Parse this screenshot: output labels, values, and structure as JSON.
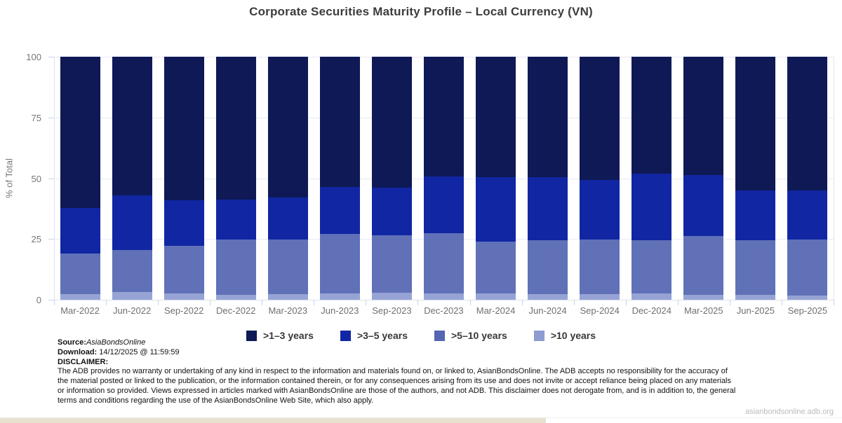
{
  "title": "Corporate Securities Maturity Profile – Local Currency (VN)",
  "chart_data": {
    "type": "bar",
    "stacked": true,
    "title": "Corporate Securities Maturity Profile – Local Currency (VN)",
    "ylabel": "% of Total",
    "xlabel": "",
    "ylim": [
      0,
      100
    ],
    "yticks": [
      0,
      25,
      50,
      75,
      100
    ],
    "grid": true,
    "legend_position": "bottom-center",
    "categories": [
      "Mar-2022",
      "Jun-2022",
      "Sep-2022",
      "Dec-2022",
      "Mar-2023",
      "Jun-2023",
      "Sep-2023",
      "Dec-2023",
      "Mar-2024",
      "Jun-2024",
      "Sep-2024",
      "Dec-2024",
      "Mar-2025",
      "Jun-2025",
      "Sep-2025"
    ],
    "series": [
      {
        "name": ">1–3 years",
        "color": "#0e1956",
        "stack_order": "top",
        "values": [
          62.2,
          57.2,
          59.1,
          58.8,
          58.0,
          53.7,
          53.8,
          49.2,
          49.5,
          49.5,
          50.6,
          48.2,
          48.7,
          54.9,
          54.9
        ]
      },
      {
        "name": ">3–5 years",
        "color": "#1126a3",
        "stack_order": "second",
        "values": [
          18.7,
          22.4,
          18.7,
          16.3,
          17.1,
          19.3,
          19.6,
          23.5,
          26.6,
          26.1,
          24.5,
          27.2,
          25.0,
          20.5,
          20.4
        ]
      },
      {
        "name": ">5–10 years",
        "color": "#5466b2",
        "stack_order": "third",
        "values": [
          16.8,
          17.3,
          19.6,
          22.8,
          22.6,
          24.3,
          23.6,
          24.8,
          21.3,
          22.1,
          22.6,
          22.1,
          24.2,
          22.6,
          23.0
        ]
      },
      {
        "name": ">10 years",
        "color": "#8e9cd1",
        "stack_order": "bottom",
        "values": [
          2.3,
          3.1,
          2.6,
          2.1,
          2.3,
          2.7,
          3.0,
          2.5,
          2.6,
          2.3,
          2.3,
          2.5,
          2.1,
          2.0,
          1.7
        ]
      }
    ]
  },
  "footer": {
    "source_label": "Source:",
    "source_value": "AsiaBondsOnline",
    "download_label": "Download:",
    "download_value": "14/12/2025 @ 11:59:59",
    "disclaimer_label": "DISCLAIMER:",
    "disclaimer_text": "The ADB provides no warranty or undertaking of any kind in respect to the information and materials found on, or linked to, AsianBondsOnline. The ADB accepts no responsibility for the accuracy of the material posted or linked to the publication, or the information contained therein, or for any consequences arising from its use and does not invite or accept reliance being placed on any materials or information so provided. Views expressed in articles marked with AsianBondsOnline are those of the authors, and not ADB. This disclaimer does not derogate from, and is in addition to, the general terms and conditions regarding the use of the AsianBondsOnline Web Site, which also apply.",
    "website": "asianbondsonline.adb.org"
  },
  "colors": {
    "gridline": "#e6eaf5",
    "axis": "#c9d2e8",
    "title_text": "#3c3c3c",
    "tick_text": "#6f6f6f",
    "bottom_strip": "#e7e1d0"
  }
}
